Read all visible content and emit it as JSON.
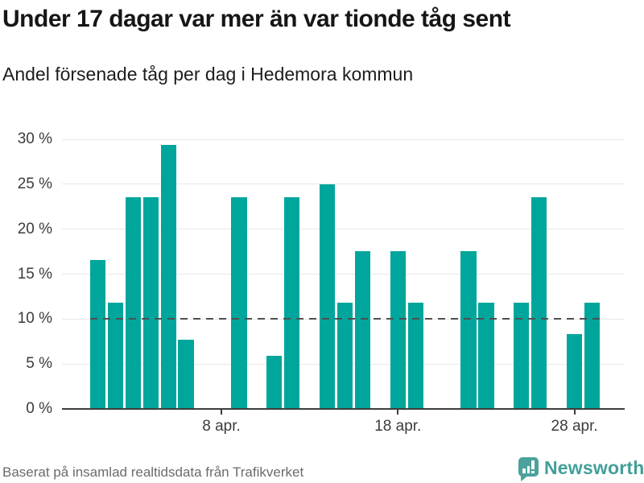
{
  "header": {
    "title": "Under 17 dagar var mer än var tionde tåg sent",
    "subtitle": "Andel försenade tåg per dag i Hedemora kommun"
  },
  "chart_data": {
    "type": "bar",
    "title": "Under 17 dagar var mer än var tionde tåg sent",
    "subtitle": "Andel försenade tåg per dag i Hedemora kommun",
    "x_unit": "dag i april",
    "ylim": [
      0,
      30
    ],
    "grid": true,
    "bar_color": "#00a69c",
    "reference_line": {
      "value": 10,
      "style": "dashed",
      "color": "#4f4f4f"
    },
    "yticks": [
      {
        "value": 0,
        "label": "0 %"
      },
      {
        "value": 5,
        "label": "5 %"
      },
      {
        "value": 10,
        "label": "10 %"
      },
      {
        "value": 15,
        "label": "15 %"
      },
      {
        "value": 20,
        "label": "20 %"
      },
      {
        "value": 25,
        "label": "25 %"
      },
      {
        "value": 30,
        "label": "30 %"
      }
    ],
    "xticks": [
      {
        "day": 8,
        "label": "8 apr."
      },
      {
        "day": 18,
        "label": "18 apr."
      },
      {
        "day": 28,
        "label": "28 apr."
      }
    ],
    "points": [
      {
        "day": 1,
        "value": 16.5
      },
      {
        "day": 2,
        "value": 11.7
      },
      {
        "day": 3,
        "value": 23.5
      },
      {
        "day": 4,
        "value": 23.5
      },
      {
        "day": 5,
        "value": 29.3
      },
      {
        "day": 6,
        "value": 7.6
      },
      {
        "day": 9,
        "value": 23.5
      },
      {
        "day": 11,
        "value": 5.8
      },
      {
        "day": 12,
        "value": 23.5
      },
      {
        "day": 14,
        "value": 24.9
      },
      {
        "day": 15,
        "value": 11.7
      },
      {
        "day": 16,
        "value": 17.5
      },
      {
        "day": 18,
        "value": 17.5
      },
      {
        "day": 19,
        "value": 11.7
      },
      {
        "day": 22,
        "value": 17.5
      },
      {
        "day": 23,
        "value": 11.7
      },
      {
        "day": 25,
        "value": 11.7
      },
      {
        "day": 26,
        "value": 23.5
      },
      {
        "day": 28,
        "value": 8.2
      },
      {
        "day": 29,
        "value": 11.7
      }
    ],
    "days_without_bar": [
      7,
      8,
      10,
      13,
      17,
      20,
      21,
      24,
      27,
      30
    ]
  },
  "footer": {
    "source": "Baserat på insamlad realtidsdata från Trafikverket",
    "brand": "Newsworthy",
    "brand_color": "#429f99",
    "logo_icon": "speech-bubble-bar-chart"
  }
}
